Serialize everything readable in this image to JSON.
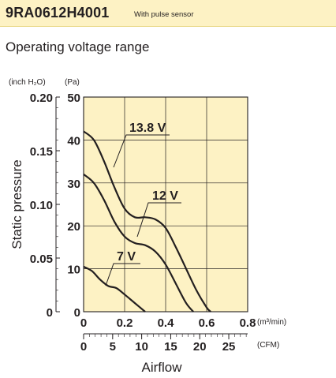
{
  "header": {
    "model": "9RA0612H4001",
    "subtitle": "With pulse sensor"
  },
  "section_title": "Operating voltage range",
  "colors": {
    "plot_bg": "#fdf2c4",
    "header_bg": "#fdf2c4",
    "ink": "#231f20"
  },
  "chart_data": {
    "type": "line",
    "ylabel": "Static pressure",
    "xlabel": "Airflow",
    "y_units": {
      "inch": "(inch H₂O)",
      "pa": "(Pa)"
    },
    "x_units": {
      "m3": "(m³/min)",
      "cfm": "(CFM)"
    },
    "xlim": [
      0,
      0.8
    ],
    "ylim_pa": [
      0,
      50
    ],
    "x_ticks": [
      "0",
      "0.2",
      "0.4",
      "0.6",
      "0.8"
    ],
    "x_cfm_ticks": [
      "0",
      "5",
      "10",
      "15",
      "20",
      "25"
    ],
    "y_pa_ticks": [
      "0",
      "10",
      "20",
      "30",
      "40",
      "50"
    ],
    "y_inch_ticks": [
      "0",
      "0.05",
      "0.10",
      "0.15",
      "0.20"
    ],
    "grid": true,
    "series": [
      {
        "name": "13.8 V",
        "points": [
          [
            0,
            42
          ],
          [
            0.05,
            40
          ],
          [
            0.1,
            35
          ],
          [
            0.15,
            29
          ],
          [
            0.2,
            24
          ],
          [
            0.25,
            22
          ],
          [
            0.3,
            22
          ],
          [
            0.35,
            21.5
          ],
          [
            0.4,
            19.5
          ],
          [
            0.45,
            15
          ],
          [
            0.5,
            10
          ],
          [
            0.55,
            5
          ],
          [
            0.6,
            1
          ],
          [
            0.62,
            0
          ]
        ]
      },
      {
        "name": "12 V",
        "points": [
          [
            0,
            32
          ],
          [
            0.05,
            30
          ],
          [
            0.1,
            26
          ],
          [
            0.15,
            21
          ],
          [
            0.2,
            17.5
          ],
          [
            0.25,
            16
          ],
          [
            0.3,
            15.5
          ],
          [
            0.35,
            14
          ],
          [
            0.4,
            11
          ],
          [
            0.45,
            6.5
          ],
          [
            0.5,
            2
          ],
          [
            0.535,
            0
          ]
        ]
      },
      {
        "name": "7 V",
        "points": [
          [
            0,
            10.5
          ],
          [
            0.04,
            9.5
          ],
          [
            0.08,
            7.5
          ],
          [
            0.12,
            6
          ],
          [
            0.16,
            5.5
          ],
          [
            0.2,
            4
          ],
          [
            0.25,
            2
          ],
          [
            0.3,
            0
          ]
        ]
      }
    ]
  }
}
